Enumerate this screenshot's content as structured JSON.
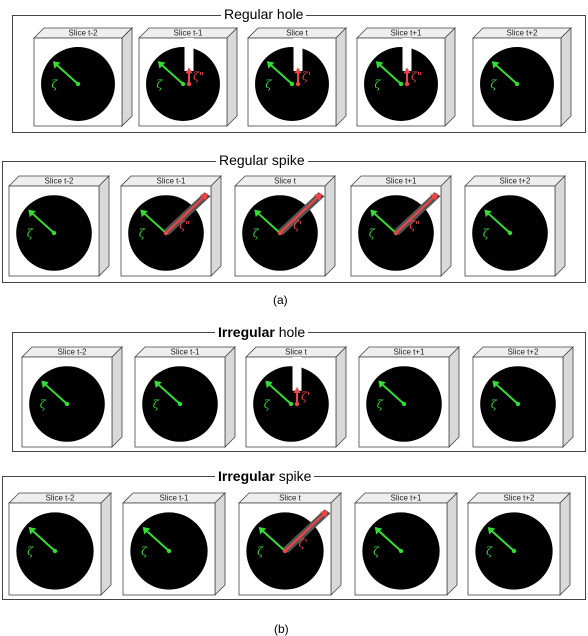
{
  "panels": [
    {
      "id": "regular-hole",
      "title_pre": "",
      "title_emph": "",
      "title_post": "Regular hole",
      "defect": "hole",
      "slices": [
        {
          "label": "Slice t-2",
          "zeta": "ζ",
          "defect": false,
          "defect_label": ""
        },
        {
          "label": "Slice t-1",
          "zeta": "ζ",
          "defect": true,
          "defect_label": "ζ\""
        },
        {
          "label": "Slice t",
          "zeta": "ζ",
          "defect": true,
          "defect_label": "ζ'"
        },
        {
          "label": "Slice t+1",
          "zeta": "ζ",
          "defect": true,
          "defect_label": "ζ\""
        },
        {
          "label": "Slice t+2",
          "zeta": "ζ",
          "defect": false,
          "defect_label": ""
        }
      ]
    },
    {
      "id": "regular-spike",
      "title_pre": "",
      "title_emph": "",
      "title_post": "Regular spike",
      "defect": "spike",
      "slices": [
        {
          "label": "Slice t-2",
          "zeta": "ζ",
          "defect": false,
          "defect_label": ""
        },
        {
          "label": "Slice t-1",
          "zeta": "ζ",
          "defect": true,
          "defect_label": "ζ\""
        },
        {
          "label": "Slice t",
          "zeta": "ζ",
          "defect": true,
          "defect_label": "ζ'"
        },
        {
          "label": "Slice t+1",
          "zeta": "ζ",
          "defect": true,
          "defect_label": "ζ\""
        },
        {
          "label": "Slice t+2",
          "zeta": "ζ",
          "defect": false,
          "defect_label": ""
        }
      ]
    },
    {
      "id": "irregular-hole",
      "title_pre": "",
      "title_emph": "Irregular",
      "title_post": " hole",
      "defect": "hole",
      "slices": [
        {
          "label": "Slice t-2",
          "zeta": "ζ",
          "defect": false,
          "defect_label": ""
        },
        {
          "label": "Slice t-1",
          "zeta": "ζ",
          "defect": false,
          "defect_label": ""
        },
        {
          "label": "Slice t",
          "zeta": "ζ",
          "defect": true,
          "defect_label": "ζ'"
        },
        {
          "label": "Slice t+1",
          "zeta": "ζ",
          "defect": false,
          "defect_label": ""
        },
        {
          "label": "Slice t+2",
          "zeta": "ζ",
          "defect": false,
          "defect_label": ""
        }
      ]
    },
    {
      "id": "irregular-spike",
      "title_pre": "",
      "title_emph": "Irregular",
      "title_post": " spike",
      "defect": "spike",
      "slices": [
        {
          "label": "Slice t-2",
          "zeta": "ζ",
          "defect": false,
          "defect_label": ""
        },
        {
          "label": "Slice t-1",
          "zeta": "ζ",
          "defect": false,
          "defect_label": ""
        },
        {
          "label": "Slice t",
          "zeta": "ζ",
          "defect": true,
          "defect_label": "ζ'"
        },
        {
          "label": "Slice t+1",
          "zeta": "ζ",
          "defect": false,
          "defect_label": ""
        },
        {
          "label": "Slice t+2",
          "zeta": "ζ",
          "defect": false,
          "defect_label": ""
        }
      ]
    }
  ],
  "captions": {
    "a": "(a)",
    "b": "(b)"
  },
  "colors": {
    "disc": "#000000",
    "normal_vector": "#33dd33",
    "defect_vector": "#ee4444",
    "cube_face": "#ffffff",
    "cube_side": "#d9d9d9",
    "cube_top": "#eeeeee",
    "cube_edge": "#444444"
  }
}
